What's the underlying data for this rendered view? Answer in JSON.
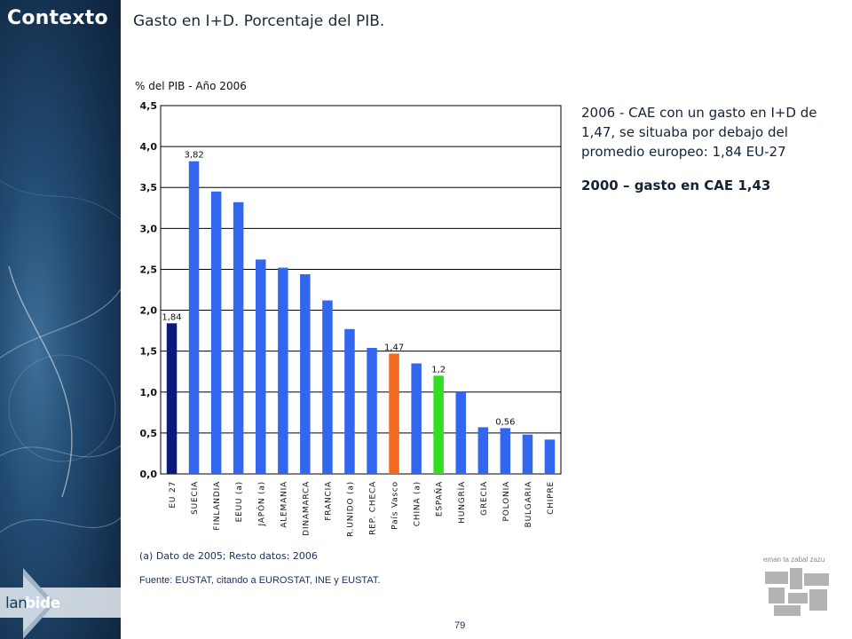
{
  "sidebar": {
    "section_title": "Contexto"
  },
  "logo": {
    "part1": "lan",
    "part2": "bide"
  },
  "heading": "Gasto en I+D. Porcentaje del PIB.",
  "notes": {
    "line1": "2006 - CAE con un gasto en I+D de 1,47, se situaba por debajo del promedio europeo: 1,84 EU-27",
    "line2": "2000 – gasto en CAE 1,43"
  },
  "footnote": "(a) Dato de 2005; Resto datos: 2006",
  "source": "Fuente: EUSTAT, citando a EUROSTAT, INE y EUSTAT.",
  "page_number": "79",
  "agency_tagline": "eman ta zabal zazu",
  "colors": {
    "default": "#3366ee",
    "eu": "#0a1a7a",
    "pais_vasco": "#f26a1b",
    "espana": "#33dd22"
  },
  "chart_data": {
    "type": "bar",
    "ylabel": "% del PIB - Año 2006",
    "ylim": [
      0,
      4.5
    ],
    "yticks": [
      "0,0",
      "0,5",
      "1,0",
      "1,5",
      "2,0",
      "2,5",
      "3,0",
      "3,5",
      "4,0",
      "4,5"
    ],
    "ytick_values": [
      0,
      0.5,
      1.0,
      1.5,
      2.0,
      2.5,
      3.0,
      3.5,
      4.0,
      4.5
    ],
    "grid": true,
    "categories": [
      "EU 27",
      "SUECIA",
      "FINLANDIA",
      "EEUU (a)",
      "JAPÓN (a)",
      "ALEMANIA",
      "DINAMARCA",
      "FRANCIA",
      "R.UNIDO (a)",
      "REP. CHECA",
      "País Vasco",
      "CHINA (a)",
      "ESPAÑA",
      "HUNGRÍA",
      "GRECIA",
      "POLONIA",
      "BULGARIA",
      "CHIPRE"
    ],
    "values": [
      1.84,
      3.82,
      3.45,
      3.32,
      2.62,
      2.52,
      2.44,
      2.12,
      1.77,
      1.54,
      1.47,
      1.35,
      1.2,
      1.0,
      0.57,
      0.56,
      0.48,
      0.42
    ],
    "data_labels": [
      "1,84",
      "3,82",
      null,
      null,
      null,
      null,
      null,
      null,
      null,
      null,
      "1,47",
      null,
      "1,2",
      null,
      null,
      "0,56",
      null,
      null
    ],
    "bar_colors": [
      "eu",
      "default",
      "default",
      "default",
      "default",
      "default",
      "default",
      "default",
      "default",
      "default",
      "pais_vasco",
      "default",
      "espana",
      "default",
      "default",
      "default",
      "default",
      "default"
    ]
  }
}
